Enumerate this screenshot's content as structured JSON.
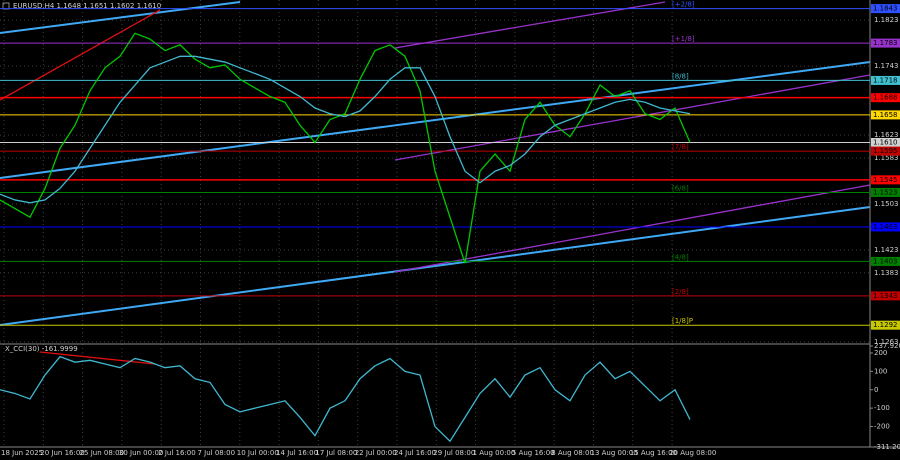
{
  "chart_data": [
    {
      "type": "line",
      "title": "EURUSD,H4  1.1648 1.1651 1.1602 1.1610",
      "ylim": [
        1.1261,
        1.1858
      ],
      "yticks": [
        1.1823,
        1.1743,
        1.1623,
        1.1583,
        1.1503,
        1.1463,
        1.1423,
        1.1383,
        1.1343,
        1.1263
      ],
      "grid": true,
      "series": [
        {
          "color": "#00c800",
          "values": [
            1.151,
            1.1495,
            1.148,
            1.153,
            1.16,
            1.164,
            1.17,
            1.174,
            1.176,
            1.18,
            1.179,
            1.177,
            1.178,
            1.1755,
            1.174,
            1.1745,
            1.172,
            1.1705,
            1.169,
            1.168,
            1.164,
            1.161,
            1.165,
            1.166,
            1.172,
            1.177,
            1.178,
            1.176,
            1.17,
            1.156,
            1.148,
            1.14,
            1.156,
            1.159,
            1.156,
            1.165,
            1.168,
            1.164,
            1.162,
            1.166,
            1.171,
            1.169,
            1.17,
            1.166,
            1.165,
            1.167,
            1.161
          ]
        },
        {
          "color": "#40b8d0",
          "values": [
            1.152,
            1.151,
            1.1505,
            1.151,
            1.153,
            1.156,
            1.16,
            1.164,
            1.168,
            1.171,
            1.174,
            1.175,
            1.176,
            1.176,
            1.1755,
            1.175,
            1.174,
            1.173,
            1.172,
            1.1705,
            1.169,
            1.167,
            1.166,
            1.1655,
            1.1665,
            1.169,
            1.172,
            1.174,
            1.174,
            1.169,
            1.162,
            1.156,
            1.154,
            1.156,
            1.157,
            1.159,
            1.162,
            1.164,
            1.165,
            1.166,
            1.167,
            1.168,
            1.1685,
            1.168,
            1.167,
            1.1665,
            1.166
          ]
        }
      ],
      "levels": [
        {
          "price": 1.1843,
          "color": "#3050ff",
          "tag": "[+2/8]"
        },
        {
          "price": 1.1783,
          "color": "#9932cc",
          "tag": "[+1/8]"
        },
        {
          "price": 1.1718,
          "color": "#40c0d0",
          "tag": "[8/8]"
        },
        {
          "price": 1.1688,
          "color": "#ff0000"
        },
        {
          "price": 1.1658,
          "color": "#ffd700"
        },
        {
          "price": {
            "value": 1.161,
            "label": "1.1610"
          },
          "color": "#d0d0d0"
        },
        {
          "price": 1.1595,
          "color": "#c00000",
          "tag": "[7/8]"
        },
        {
          "price": 1.1545,
          "color": "#ff0000"
        },
        {
          "price": 1.1523,
          "color": "#008000",
          "tag": "[6/8]"
        },
        {
          "price": 1.1463,
          "color": "#0000ff"
        },
        {
          "price": 1.1403,
          "color": "#008000",
          "tag": "[4/8]"
        },
        {
          "price": 1.1343,
          "color": "#c00000",
          "tag": "[2/8]"
        },
        {
          "price": 1.1292,
          "color": "#c8c800",
          "tag": "[1/8]P"
        }
      ]
    },
    {
      "type": "line",
      "title": "X_CCI(30) -161.9999",
      "ylim": [
        -311.204,
        237.9209
      ],
      "yticks": [
        237.9209,
        200,
        100,
        0,
        -100,
        -200,
        -311.204
      ],
      "series": [
        {
          "color": "#40b8d0",
          "values": [
            0,
            -20,
            -50,
            80,
            180,
            150,
            160,
            140,
            120,
            170,
            150,
            120,
            130,
            60,
            40,
            -80,
            -120,
            -100,
            -80,
            -60,
            -150,
            -250,
            -100,
            -60,
            60,
            130,
            170,
            100,
            80,
            -200,
            -280,
            -150,
            -20,
            60,
            -40,
            80,
            120,
            0,
            -60,
            80,
            150,
            60,
            100,
            20,
            -60,
            0,
            -162
          ]
        }
      ]
    }
  ],
  "time_axis": [
    "18 Jun 2025",
    "20 Jun 16:00",
    "25 Jun 08:00",
    "30 Jun 00:00",
    "2 Jul 16:00",
    "7 Jul 08:00",
    "10 Jul 00:00",
    "14 Jul 16:00",
    "17 Jul 08:00",
    "22 Jul 00:00",
    "24 Jul 16:00",
    "29 Jul 08:00",
    "1 Aug 00:00",
    "5 Aug 16:00",
    "8 Aug 08:00",
    "13 Aug 00:00",
    "15 Aug 16:00",
    "20 Aug 08:00"
  ]
}
